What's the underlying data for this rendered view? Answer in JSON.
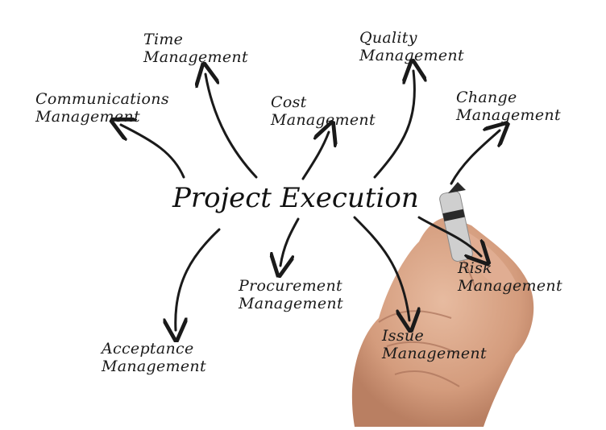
{
  "center": {
    "text": "Project Execution"
  },
  "nodes": [
    {
      "id": "time",
      "lines": [
        "Time",
        "Management"
      ]
    },
    {
      "id": "quality",
      "lines": [
        "Quality",
        "Management"
      ]
    },
    {
      "id": "communications",
      "lines": [
        "Communications",
        "Management"
      ]
    },
    {
      "id": "cost",
      "lines": [
        "Cost",
        "Management"
      ]
    },
    {
      "id": "change",
      "lines": [
        "Change",
        "Management"
      ]
    },
    {
      "id": "risk",
      "lines": [
        "Risk",
        "Management"
      ]
    },
    {
      "id": "procurement",
      "lines": [
        "Procurement",
        "Management"
      ]
    },
    {
      "id": "issue",
      "lines": [
        "Issue",
        "Management"
      ]
    },
    {
      "id": "acceptance",
      "lines": [
        "Acceptance",
        "Management"
      ]
    }
  ],
  "colors": {
    "ink": "#1a1a1a",
    "background": "#ffffff",
    "skin": "#dba98c",
    "marker": "#2a2a2a"
  }
}
